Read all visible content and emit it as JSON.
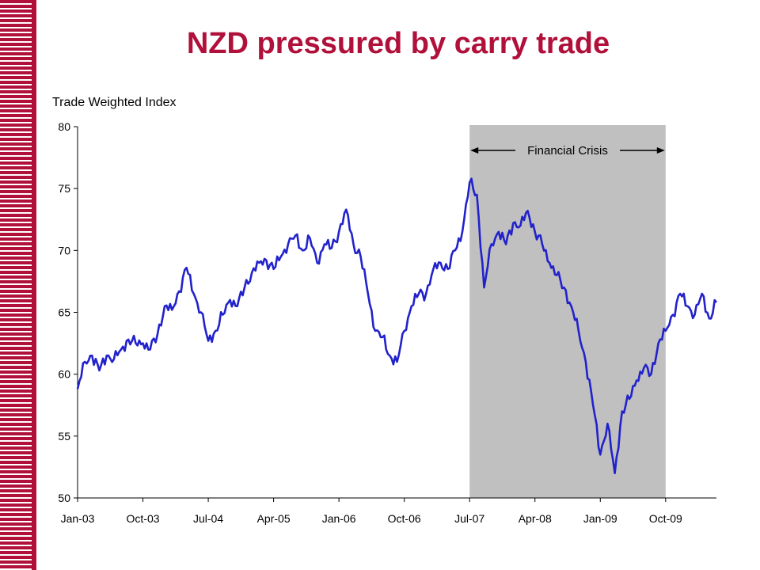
{
  "slide": {
    "title": "NZD pressured by carry trade"
  },
  "colors": {
    "accent": "#b0103a",
    "series": "#2222cc",
    "shade": "#c0c0c0"
  },
  "chart_data": {
    "type": "line",
    "title": "NZD pressured by carry trade",
    "ylabel": "Trade Weighted Index",
    "xlabel": "",
    "ylim": [
      50,
      80
    ],
    "yticks": [
      "50",
      "55",
      "60",
      "65",
      "70",
      "75",
      "80"
    ],
    "xticks": [
      "Jan-03",
      "Oct-03",
      "Jul-04",
      "Apr-05",
      "Jan-06",
      "Oct-06",
      "Jul-07",
      "Apr-08",
      "Jan-09",
      "Oct-09"
    ],
    "xlim": [
      "2003-01",
      "2010-05"
    ],
    "grid": false,
    "legend": "none",
    "annotation": {
      "text": "Financial Crisis",
      "start": "2007-07",
      "end": "2009-10"
    },
    "series": [
      {
        "x": [
          "2003-01",
          "2003-02",
          "2003-03",
          "2003-04",
          "2003-05",
          "2003-06",
          "2003-07",
          "2003-08",
          "2003-09",
          "2003-10",
          "2003-11",
          "2003-12",
          "2004-01",
          "2004-02",
          "2004-03",
          "2004-04",
          "2004-05",
          "2004-06",
          "2004-07",
          "2004-08",
          "2004-09",
          "2004-10",
          "2004-11",
          "2004-12",
          "2005-01",
          "2005-02",
          "2005-03",
          "2005-04",
          "2005-05",
          "2005-06",
          "2005-07",
          "2005-08",
          "2005-09",
          "2005-10",
          "2005-11",
          "2005-12",
          "2006-01",
          "2006-02",
          "2006-03",
          "2006-04",
          "2006-05",
          "2006-06",
          "2006-07",
          "2006-08",
          "2006-09",
          "2006-10",
          "2006-11",
          "2006-12",
          "2007-01",
          "2007-02",
          "2007-03",
          "2007-04",
          "2007-05",
          "2007-06",
          "2007-07",
          "2007-08",
          "2007-09",
          "2007-10",
          "2007-11",
          "2007-12",
          "2008-01",
          "2008-02",
          "2008-03",
          "2008-04",
          "2008-05",
          "2008-06",
          "2008-07",
          "2008-08",
          "2008-09",
          "2008-10",
          "2008-11",
          "2008-12",
          "2009-01",
          "2009-02",
          "2009-03",
          "2009-04",
          "2009-05",
          "2009-06",
          "2009-07",
          "2009-08",
          "2009-09",
          "2009-10",
          "2009-11",
          "2009-12",
          "2010-01",
          "2010-02",
          "2010-03",
          "2010-04",
          "2010-05"
        ],
        "y": [
          58.8,
          61.0,
          61.5,
          60.3,
          61.5,
          61.2,
          62.0,
          62.8,
          62.5,
          62.5,
          62.0,
          63.2,
          65.5,
          65.2,
          66.7,
          68.6,
          66.5,
          65.0,
          62.7,
          63.5,
          64.8,
          66.0,
          65.5,
          67.0,
          68.2,
          69.0,
          69.2,
          68.5,
          69.5,
          70.5,
          71.2,
          70.0,
          71.0,
          69.0,
          70.5,
          70.2,
          71.5,
          73.3,
          70.5,
          69.5,
          66.5,
          63.5,
          63.0,
          61.5,
          61.0,
          63.5,
          65.5,
          66.5,
          66.5,
          68.5,
          69.0,
          68.5,
          70.0,
          71.5,
          75.5,
          74.5,
          67.0,
          70.5,
          71.5,
          70.5,
          72.2,
          72.0,
          73.2,
          71.5,
          70.5,
          69.0,
          68.0,
          67.0,
          65.5,
          63.5,
          61.0,
          57.5,
          53.5,
          56.0,
          52.0,
          57.0,
          58.0,
          59.5,
          60.5,
          60.0,
          62.5,
          63.5,
          64.8,
          66.5,
          65.5,
          64.8,
          66.5,
          64.5,
          65.8
        ]
      }
    ]
  }
}
